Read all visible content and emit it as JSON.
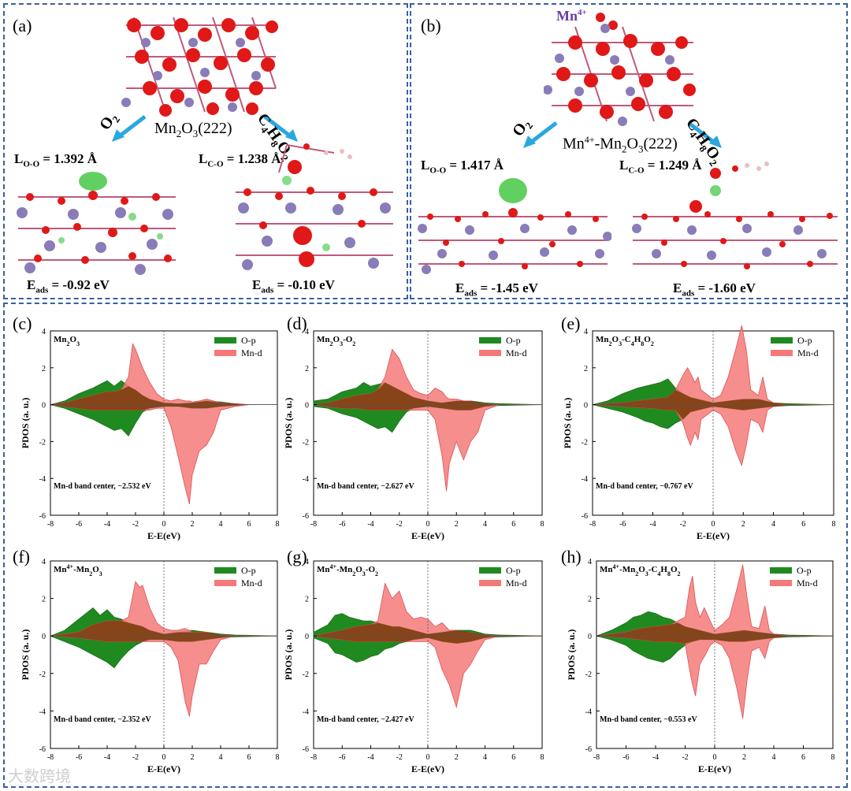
{
  "colors": {
    "frame": "#3a5fa0",
    "mn_atom": "#8a7cb8",
    "o_atom": "#e01818",
    "bond": "#c05a7a",
    "arrow": "#2aa7e0",
    "green_density": "#39c43a",
    "red_density": "#f06060",
    "o_p_fill": "#1f8a1f",
    "mn_d_fill": "#f47a7a",
    "mn4_label": "#6a3ea0"
  },
  "top": {
    "a": {
      "label": "(a)",
      "surface_prefix": "Mn",
      "surface_rest": "(222)",
      "left_arrow": "O",
      "right_arrow": "C",
      "right_arrow_rest": "O",
      "left_bond_prefix": "L",
      "left_bond_sub": "O-O",
      "left_bond_val": " = 1.392 Å",
      "right_bond_prefix": "L",
      "right_bond_sub": "C-O",
      "right_bond_val": " = 1.238 Å",
      "left_e_prefix": "E",
      "left_e_sub": "ads",
      "left_e_val": " = -0.92 eV",
      "right_e_prefix": "E",
      "right_e_sub": "ads",
      "right_e_val": " = -0.10 eV"
    },
    "b": {
      "label": "(b)",
      "mn4_label": "Mn",
      "surface_prefix": "Mn",
      "surface_rest": "(222)",
      "left_arrow": "O",
      "right_arrow": "C",
      "right_arrow_rest": "O",
      "left_bond_prefix": "L",
      "left_bond_sub": "O-O",
      "left_bond_val": " = 1.417 Å",
      "right_bond_prefix": "L",
      "right_bond_sub": "C-O",
      "right_bond_val": " = 1.249 Å",
      "left_e_prefix": "E",
      "left_e_sub": "ads",
      "left_e_val": " = -1.45 eV",
      "right_e_prefix": "E",
      "right_e_sub": "ads",
      "right_e_val": " = -1.60 eV"
    }
  },
  "chart_data": [
    {
      "type": "area",
      "panel": "(c)",
      "title": "Mn2O3",
      "band_center": "Mn-d band center, −2.532 eV",
      "xlabel": "E-E(eV)",
      "ylabel": "PDOS (a. u.)",
      "xlim": [
        -8,
        8
      ],
      "ylim": [
        -6,
        4
      ],
      "xticks": [
        -8,
        -6,
        -4,
        -2,
        0,
        2,
        4,
        6,
        8
      ],
      "yticks": [
        -6,
        -4,
        -2,
        0,
        2,
        4
      ],
      "legend": "top-right",
      "series": [
        {
          "name": "O-p",
          "x": [
            -8,
            -7,
            -6,
            -5,
            -4.5,
            -4,
            -3.5,
            -3,
            -2.5,
            -2,
            -1.5,
            -1,
            0,
            1,
            2,
            3,
            4,
            5,
            6,
            8
          ],
          "up": [
            0,
            0.2,
            0.6,
            0.9,
            1.1,
            1.3,
            1.0,
            1.3,
            1.0,
            0.8,
            0.5,
            0.3,
            0.1,
            0.05,
            0.1,
            0.2,
            0.15,
            0.05,
            0,
            0
          ],
          "down": [
            0,
            -0.2,
            -0.5,
            -0.8,
            -1.0,
            -1.2,
            -1.4,
            -1.3,
            -1.7,
            -1.0,
            -0.4,
            -0.2,
            -0.1,
            -0.1,
            -0.2,
            -0.2,
            -0.1,
            -0.05,
            0,
            0
          ]
        },
        {
          "name": "Mn-d",
          "x": [
            -8,
            -7,
            -6,
            -5,
            -4.5,
            -4,
            -3.5,
            -3,
            -2.5,
            -2.2,
            -2,
            -1.5,
            -1,
            -0.5,
            0,
            0.5,
            1,
            1.5,
            1.8,
            2,
            2.5,
            3,
            3.5,
            4,
            5,
            6,
            8
          ],
          "up": [
            0,
            0.1,
            0.3,
            0.5,
            0.6,
            0.7,
            0.7,
            0.8,
            1.5,
            3.3,
            3.0,
            2.0,
            1.2,
            0.6,
            0.3,
            0.2,
            0.3,
            0.2,
            0.2,
            0.15,
            0.2,
            0.3,
            0.2,
            0.1,
            0.05,
            0,
            0
          ],
          "down": [
            0,
            -0.1,
            -0.2,
            -0.3,
            -0.3,
            -0.3,
            -0.3,
            -0.3,
            -0.3,
            -0.3,
            -0.3,
            -0.3,
            -0.3,
            -0.2,
            -0.2,
            -1.2,
            -2.8,
            -4.5,
            -5.4,
            -3.8,
            -2.5,
            -2.2,
            -1.5,
            -0.3,
            -0.1,
            0,
            0
          ]
        }
      ]
    },
    {
      "type": "area",
      "panel": "(d)",
      "title": "Mn2O3-O2",
      "band_center": "Mn-d band center, −2.627 eV",
      "xlabel": "E-E(eV)",
      "ylabel": "PDOS (a. u.)",
      "xlim": [
        -8,
        8
      ],
      "ylim": [
        -6,
        4
      ],
      "xticks": [
        -8,
        -6,
        -4,
        -2,
        0,
        2,
        4,
        6,
        8
      ],
      "yticks": [
        -6,
        -4,
        -2,
        0,
        2,
        4
      ],
      "legend": "top-right",
      "series": [
        {
          "name": "O-p",
          "x": [
            -8,
            -7,
            -6,
            -5,
            -4.5,
            -4,
            -3.5,
            -3,
            -2.5,
            -2,
            -1.5,
            -1,
            0,
            1,
            2,
            3,
            4,
            5,
            8
          ],
          "up": [
            0.2,
            0.3,
            0.7,
            0.9,
            1.2,
            1.0,
            1.1,
            1.2,
            1.0,
            0.8,
            0.6,
            0.4,
            0.2,
            0.1,
            0.2,
            0.2,
            0.1,
            0.05,
            0
          ],
          "down": [
            -0.1,
            -0.2,
            -0.5,
            -0.7,
            -0.9,
            -1.1,
            -1.3,
            -1.2,
            -1.5,
            -0.9,
            -0.4,
            -0.2,
            -0.1,
            -0.2,
            -0.3,
            -0.3,
            -0.1,
            -0.05,
            0
          ]
        },
        {
          "name": "Mn-d",
          "x": [
            -8,
            -7,
            -6,
            -5,
            -4,
            -3.5,
            -3,
            -2.5,
            -2,
            -1.5,
            -1,
            -0.5,
            0,
            0.5,
            1,
            1.3,
            1.5,
            2,
            2.5,
            3,
            3.5,
            4,
            5,
            8
          ],
          "up": [
            0,
            0.1,
            0.3,
            0.5,
            0.6,
            0.8,
            1.5,
            3.0,
            2.5,
            1.5,
            0.8,
            0.6,
            0.5,
            0.9,
            0.7,
            0.4,
            0.3,
            0.3,
            0.2,
            0.2,
            0.1,
            0.05,
            0,
            0
          ],
          "down": [
            0,
            -0.1,
            -0.2,
            -0.2,
            -0.3,
            -0.3,
            -0.3,
            -0.3,
            -0.3,
            -0.3,
            -0.3,
            -0.3,
            -0.3,
            -0.8,
            -2.8,
            -4.7,
            -3.2,
            -2.0,
            -3.0,
            -2.0,
            -1.5,
            -0.3,
            0,
            0
          ]
        }
      ]
    },
    {
      "type": "area",
      "panel": "(e)",
      "title": "Mn2O3-C4H8O2",
      "band_center": "Mn-d band center, −0.767 eV",
      "xlabel": "E-E(eV)",
      "ylabel": "PDOS (a. u.)",
      "xlim": [
        -8,
        8
      ],
      "ylim": [
        -6,
        4
      ],
      "xticks": [
        -8,
        -6,
        -4,
        -2,
        0,
        2,
        4,
        6,
        8
      ],
      "yticks": [
        -6,
        -4,
        -2,
        0,
        2,
        4
      ],
      "legend": "top-right",
      "series": [
        {
          "name": "O-p",
          "x": [
            -8,
            -7,
            -6,
            -5,
            -4.5,
            -4,
            -3.5,
            -3,
            -2.5,
            -2,
            -1.5,
            -1,
            0,
            1,
            2,
            3,
            4,
            5,
            8
          ],
          "up": [
            0,
            0.2,
            0.6,
            0.9,
            1.0,
            1.1,
            1.2,
            1.4,
            0.9,
            0.6,
            0.4,
            0.3,
            0.1,
            0.2,
            0.3,
            0.3,
            0.1,
            0.05,
            0
          ],
          "down": [
            0,
            -0.2,
            -0.4,
            -0.7,
            -0.9,
            -1.0,
            -1.2,
            -1.3,
            -1.0,
            -0.8,
            -0.4,
            -0.3,
            -0.1,
            -0.2,
            -0.3,
            -0.2,
            -0.1,
            -0.05,
            0
          ]
        },
        {
          "name": "Mn-d",
          "x": [
            -8,
            -6,
            -4,
            -3,
            -2.5,
            -2,
            -1.7,
            -1.5,
            -1.2,
            -1,
            -0.8,
            0,
            0.5,
            1,
            1.5,
            1.9,
            2.2,
            2.5,
            3,
            3.3,
            3.6,
            4,
            5,
            8
          ],
          "up": [
            0,
            0.1,
            0.3,
            0.4,
            0.8,
            1.6,
            2.0,
            1.7,
            1.2,
            1.5,
            0.8,
            0.3,
            0.5,
            1.5,
            3.0,
            4.3,
            3.0,
            0.8,
            0.5,
            1.5,
            0.3,
            0.1,
            0,
            0
          ],
          "down": [
            0,
            -0.1,
            -0.2,
            -0.3,
            -0.3,
            -1.0,
            -1.8,
            -2.2,
            -1.5,
            -1.9,
            -0.8,
            -0.3,
            -0.5,
            -1.2,
            -2.5,
            -3.3,
            -2.2,
            -0.8,
            -1.0,
            -1.5,
            -0.3,
            -0.1,
            0,
            0
          ]
        }
      ]
    },
    {
      "type": "area",
      "panel": "(f)",
      "title": "Mn4+-Mn2O3",
      "band_center": "Mn-d band center, −2.352 eV",
      "xlabel": "E-E(eV)",
      "ylabel": "PDOS (a. u.)",
      "xlim": [
        -8,
        8
      ],
      "ylim": [
        -6,
        4
      ],
      "xticks": [
        -8,
        -6,
        -4,
        -2,
        0,
        2,
        4,
        6,
        8
      ],
      "yticks": [
        -6,
        -4,
        -2,
        0,
        2,
        4
      ],
      "legend": "top-right",
      "series": [
        {
          "name": "O-p",
          "x": [
            -8,
            -7,
            -6,
            -5.5,
            -5,
            -4.5,
            -4,
            -3.5,
            -3,
            -2.5,
            -2,
            -1.5,
            -1,
            0,
            1,
            2,
            3,
            4,
            5,
            8
          ],
          "up": [
            0,
            0.3,
            0.9,
            1.2,
            1.5,
            1.1,
            1.4,
            1.0,
            0.9,
            0.7,
            0.6,
            0.5,
            0.3,
            0.1,
            0.2,
            0.3,
            0.2,
            0.1,
            0.05,
            0
          ],
          "down": [
            0,
            -0.3,
            -0.6,
            -0.8,
            -1.0,
            -1.2,
            -1.4,
            -1.7,
            -1.2,
            -0.8,
            -0.5,
            -0.3,
            -0.2,
            -0.2,
            -0.3,
            -0.3,
            -0.2,
            -0.1,
            -0.05,
            0
          ]
        },
        {
          "name": "Mn-d",
          "x": [
            -8,
            -6,
            -5,
            -4,
            -3,
            -2.5,
            -2,
            -1.7,
            -1.5,
            -1,
            -0.5,
            0,
            0.5,
            1,
            1.5,
            1.8,
            2,
            2.5,
            3,
            3.5,
            4,
            5,
            8
          ],
          "up": [
            0,
            0.2,
            0.6,
            0.8,
            0.8,
            1.0,
            2.9,
            2.6,
            2.7,
            1.5,
            0.7,
            0.4,
            0.3,
            0.3,
            0.4,
            0.3,
            0.2,
            0.2,
            0.2,
            0.1,
            0.05,
            0,
            0
          ],
          "down": [
            0,
            -0.1,
            -0.2,
            -0.3,
            -0.3,
            -0.3,
            -0.3,
            -0.3,
            -0.3,
            -0.3,
            -0.3,
            -0.3,
            -0.6,
            -1.3,
            -3.5,
            -4.3,
            -3.2,
            -1.5,
            -1.5,
            -0.8,
            -0.2,
            0,
            0
          ]
        }
      ]
    },
    {
      "type": "area",
      "panel": "(g)",
      "title": "Mn4+-Mn2O3-O2",
      "band_center": "Mn-d band center, −2.427 eV",
      "xlabel": "E-E(eV)",
      "ylabel": "PDOS (a. u.)",
      "xlim": [
        -8,
        8
      ],
      "ylim": [
        -6,
        4
      ],
      "xticks": [
        -8,
        -6,
        -4,
        -2,
        0,
        2,
        4,
        6,
        8
      ],
      "yticks": [
        -6,
        -4,
        -2,
        0,
        2,
        4
      ],
      "legend": "top-right",
      "series": [
        {
          "name": "O-p",
          "x": [
            -8,
            -7,
            -6.5,
            -6,
            -5.5,
            -5,
            -4.5,
            -4,
            -3.5,
            -3,
            -2.5,
            -2,
            -1.5,
            -1,
            0,
            1,
            2,
            3,
            4,
            5,
            8
          ],
          "up": [
            0.2,
            0.6,
            1.1,
            1.2,
            1.0,
            0.9,
            0.8,
            0.8,
            0.7,
            0.6,
            0.5,
            0.5,
            0.4,
            0.3,
            0.1,
            0.2,
            0.3,
            0.3,
            0.1,
            0.05,
            0
          ],
          "down": [
            -0.1,
            -0.4,
            -0.9,
            -1.0,
            -1.2,
            -1.4,
            -1.3,
            -1.1,
            -1.0,
            -0.7,
            -0.6,
            -0.4,
            -0.3,
            -0.2,
            -0.1,
            -0.3,
            -0.4,
            -0.3,
            -0.1,
            -0.05,
            0
          ]
        },
        {
          "name": "Mn-d",
          "x": [
            -8,
            -6,
            -5,
            -4,
            -3.5,
            -3,
            -2.5,
            -2,
            -1.5,
            -1,
            -0.5,
            0,
            0.5,
            1,
            1.5,
            2,
            2.5,
            3,
            3.5,
            4,
            5,
            8
          ],
          "up": [
            0,
            0.3,
            0.5,
            0.6,
            0.8,
            2.8,
            2.0,
            2.4,
            1.3,
            0.9,
            1.0,
            0.9,
            0.5,
            0.7,
            0.3,
            0.3,
            0.2,
            0.2,
            0.1,
            0.05,
            0,
            0
          ],
          "down": [
            0,
            -0.2,
            -0.3,
            -0.3,
            -0.3,
            -0.3,
            -0.3,
            -0.3,
            -0.3,
            -0.3,
            -0.3,
            -0.3,
            -0.6,
            -1.8,
            -2.6,
            -3.8,
            -2.0,
            -1.5,
            -0.8,
            -0.2,
            0,
            0
          ]
        }
      ]
    },
    {
      "type": "area",
      "panel": "(h)",
      "title": "Mn4+-Mn2O3-C4H8O2",
      "band_center": "Mn-d band center, −0.553 eV",
      "xlabel": "E-E(eV)",
      "ylabel": "PDOS (a. u.)",
      "xlim": [
        -8,
        8
      ],
      "ylim": [
        -6,
        4
      ],
      "xticks": [
        -8,
        -6,
        -4,
        -2,
        0,
        2,
        4,
        6,
        8
      ],
      "yticks": [
        -6,
        -4,
        -2,
        0,
        2,
        4
      ],
      "legend": "top-right",
      "series": [
        {
          "name": "O-p",
          "x": [
            -8,
            -7,
            -6,
            -5.5,
            -5,
            -4.5,
            -4,
            -3.5,
            -3,
            -2.5,
            -2,
            -1.5,
            -1,
            0,
            1,
            2,
            3,
            4,
            5,
            8
          ],
          "up": [
            0,
            0.3,
            0.7,
            1.0,
            1.1,
            1.3,
            1.2,
            1.0,
            0.9,
            0.7,
            0.5,
            0.4,
            0.3,
            0.1,
            0.2,
            0.3,
            0.2,
            0.1,
            0.05,
            0
          ],
          "down": [
            0,
            -0.2,
            -0.5,
            -0.8,
            -1.0,
            -1.2,
            -1.3,
            -1.4,
            -1.2,
            -0.8,
            -0.5,
            -0.3,
            -0.2,
            -0.2,
            -0.3,
            -0.3,
            -0.2,
            -0.1,
            -0.05,
            0
          ]
        },
        {
          "name": "Mn-d",
          "x": [
            -8,
            -6,
            -5,
            -4,
            -3,
            -2,
            -1.7,
            -1.5,
            -1.3,
            -1,
            -0.7,
            -0.3,
            0,
            0.5,
            1,
            1.5,
            1.9,
            2.2,
            2.5,
            3,
            3.4,
            3.7,
            4,
            5,
            8
          ],
          "up": [
            0,
            0.2,
            0.4,
            0.5,
            0.6,
            1.0,
            2.6,
            3.2,
            1.8,
            1.0,
            1.5,
            0.8,
            0.3,
            0.6,
            1.0,
            2.5,
            3.8,
            2.0,
            0.5,
            0.4,
            1.6,
            0.3,
            0.1,
            0,
            0
          ],
          "down": [
            0,
            -0.1,
            -0.2,
            -0.3,
            -0.3,
            -0.4,
            -1.8,
            -2.6,
            -3.2,
            -1.5,
            -1.1,
            -0.5,
            -0.3,
            -0.5,
            -1.2,
            -2.8,
            -4.4,
            -2.3,
            -0.8,
            -0.6,
            -1.2,
            -0.3,
            -0.1,
            0,
            0
          ]
        }
      ]
    }
  ],
  "watermark": "大数跨境"
}
